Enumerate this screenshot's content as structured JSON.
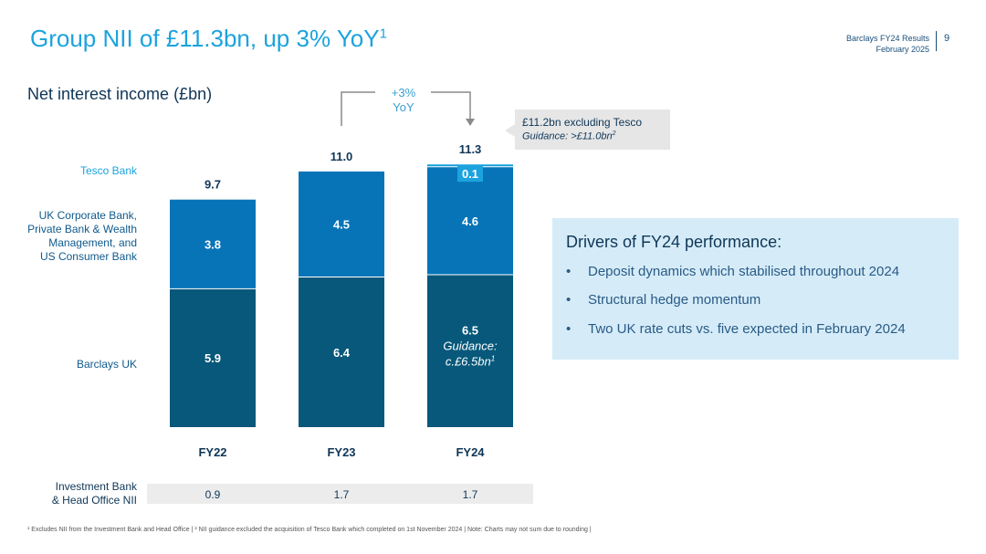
{
  "header": {
    "title": "Group NII of £11.3bn, up 3% YoY",
    "title_sup": "1",
    "meta_line1": "Barclays FY24 Results",
    "meta_line2": "February 2025",
    "page_number": "9"
  },
  "chart_data": {
    "type": "bar",
    "stacked": true,
    "title": "Net interest income (£bn)",
    "categories": [
      "FY22",
      "FY23",
      "FY24"
    ],
    "series": [
      {
        "name": "Barclays UK",
        "values": [
          5.9,
          6.4,
          6.5
        ],
        "labels": [
          "5.9",
          "6.4",
          "6.5"
        ],
        "color": "#07587a"
      },
      {
        "name": "UK Corporate Bank, Private Bank & Wealth Management, and US Consumer Bank",
        "values": [
          3.8,
          4.5,
          4.6
        ],
        "labels": [
          "3.8",
          "4.5",
          "4.6"
        ],
        "color": "#0774b8"
      },
      {
        "name": "Tesco Bank",
        "values": [
          0,
          0,
          0.1
        ],
        "labels": [
          "",
          "",
          "0.1"
        ],
        "color": "#1ca3dd"
      }
    ],
    "totals": [
      "9.7",
      "11.0",
      "11.3"
    ],
    "fy24_bottom_guidance": [
      "Guidance:",
      "c.£6.5bn"
    ],
    "fy24_bottom_guidance_sup": "1",
    "ylim": [
      0,
      11.3
    ],
    "legend_position": "left",
    "yoy_annotation": [
      "+3%",
      "YoY"
    ],
    "callout": {
      "line1": "£11.2bn excluding Tesco",
      "line2": "Guidance: >£11.0bn",
      "line2_sup": "2"
    },
    "investment_bank_row": {
      "label_lines": [
        "Investment Bank",
        "& Head Office NII"
      ],
      "values": [
        "0.9",
        "1.7",
        "1.7"
      ]
    }
  },
  "segment_labels": {
    "tesco": "Tesco Bank",
    "corporate": [
      "UK Corporate Bank,",
      "Private Bank & Wealth",
      "Management, and",
      "US Consumer Bank"
    ],
    "barclays_uk": "Barclays UK"
  },
  "drivers": {
    "title": "Drivers of FY24 performance:",
    "items": [
      "Deposit dynamics which stabilised throughout 2024",
      "Structural hedge momentum",
      "Two UK rate cuts vs. five expected in February 2024"
    ]
  },
  "footnote": "¹ Excludes NII from the Investment Bank and Head Office | ² NII guidance excluded the acquisition of Tesco Bank which completed on 1st November 2024 | Note: Charts may not sum due to rounding |"
}
